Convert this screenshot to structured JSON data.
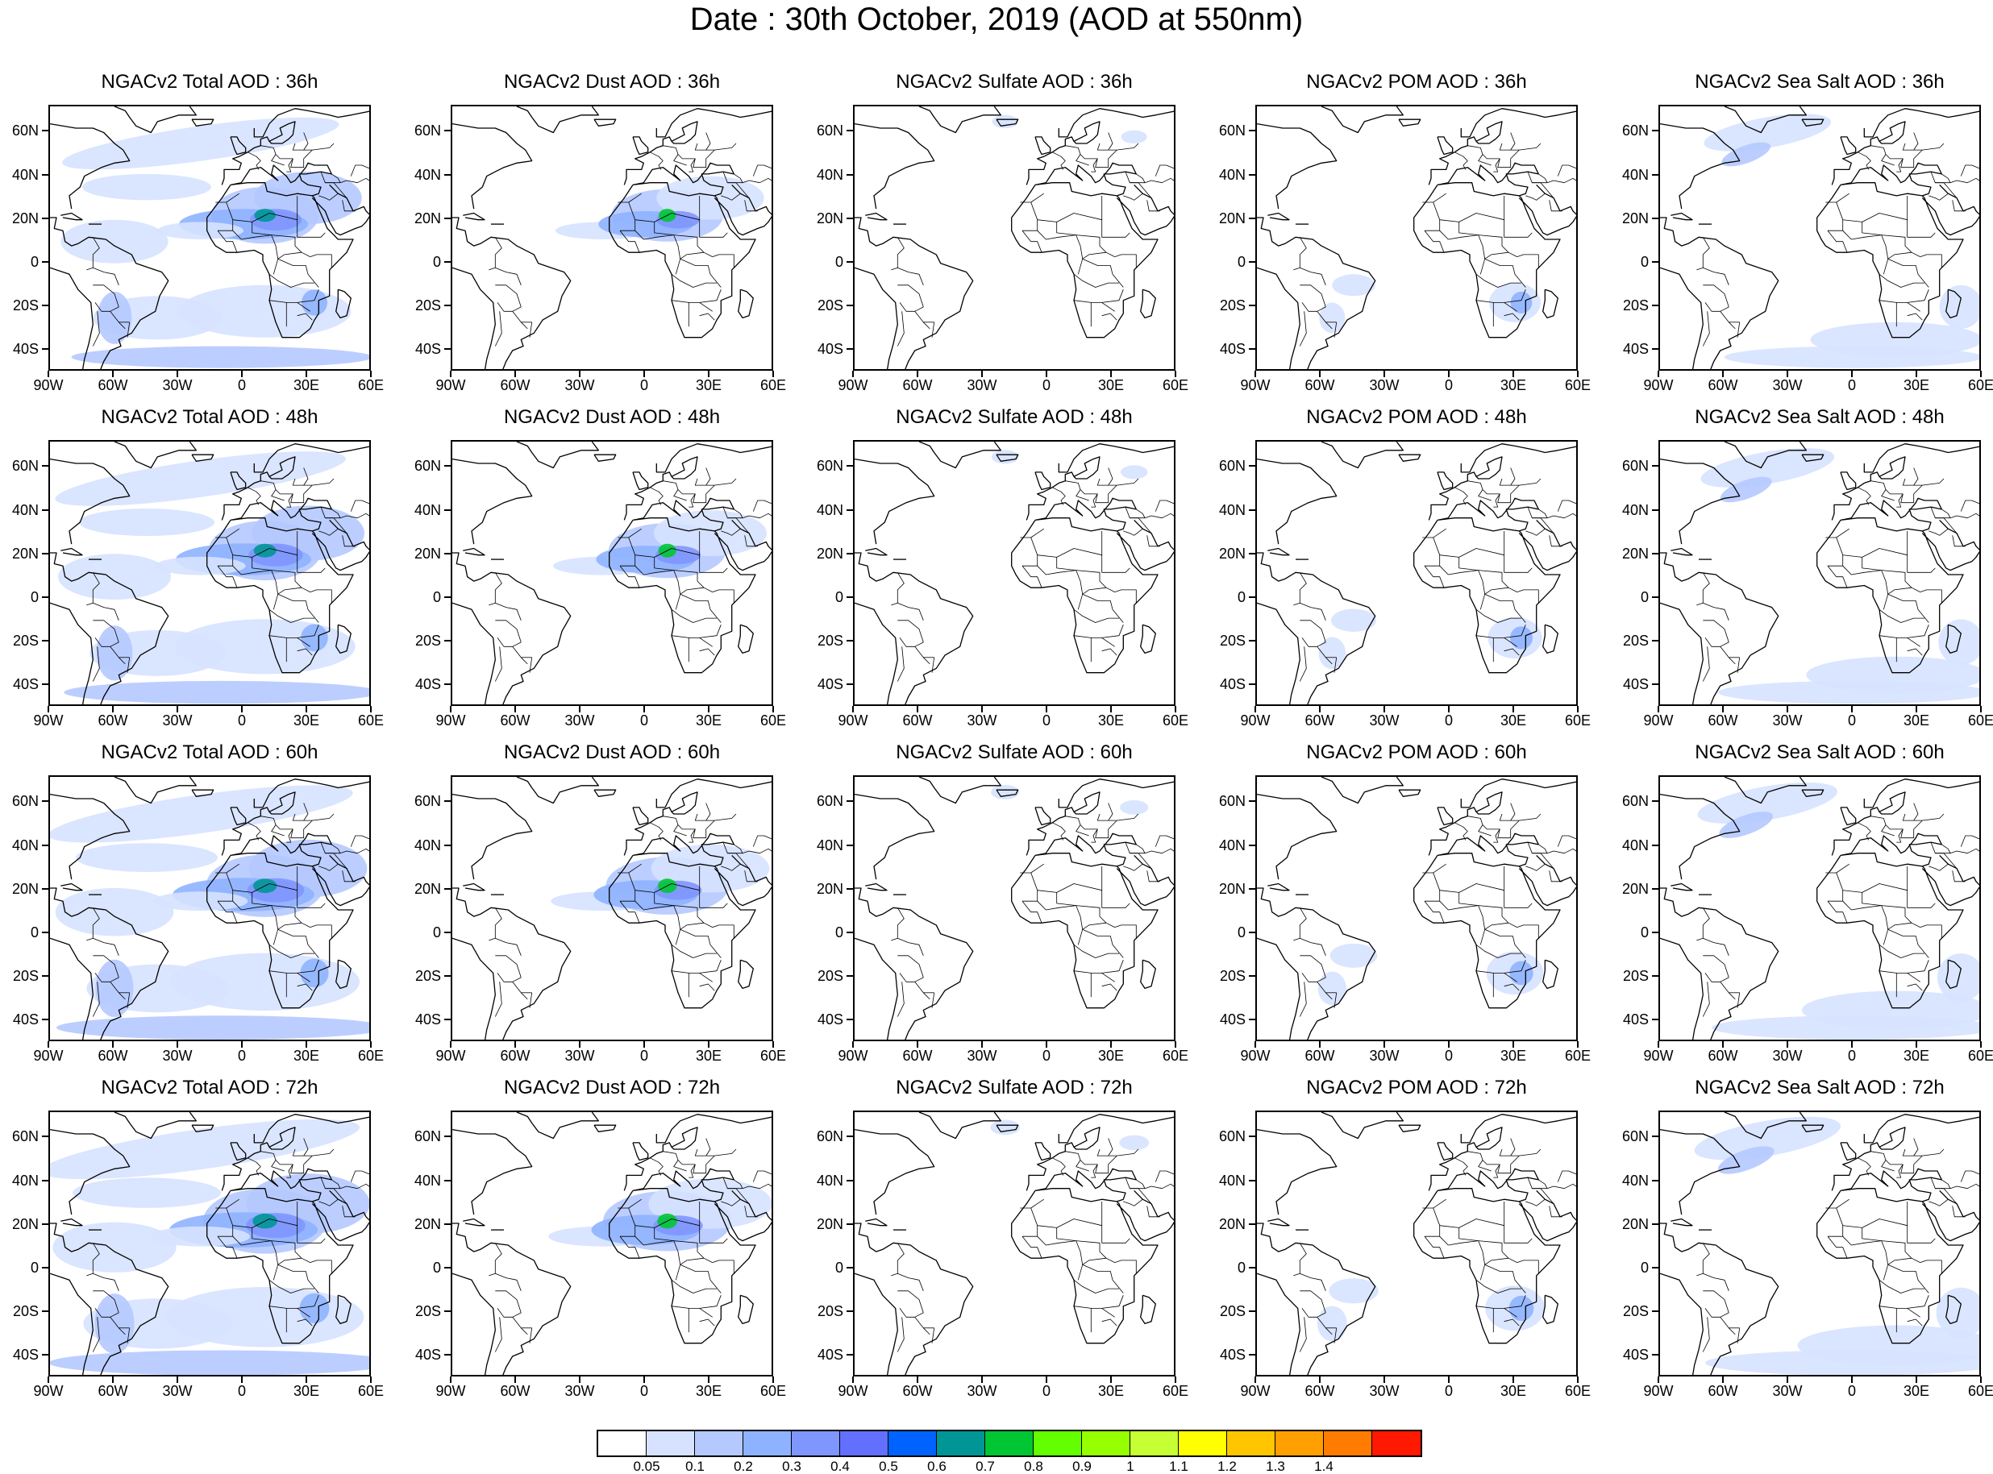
{
  "title": "Date : 30th October, 2019 (AOD at 550nm)",
  "columns": [
    "Total",
    "Dust",
    "Sulfate",
    "POM",
    "Sea Salt"
  ],
  "rows": [
    "36h",
    "48h",
    "60h",
    "72h"
  ],
  "panels": [
    {
      "title": "NGACv2 Total AOD : 36h",
      "species": "Total",
      "hour": "36h"
    },
    {
      "title": "NGACv2 Dust AOD : 36h",
      "species": "Dust",
      "hour": "36h"
    },
    {
      "title": "NGACv2 Sulfate AOD : 36h",
      "species": "Sulfate",
      "hour": "36h"
    },
    {
      "title": "NGACv2 POM AOD : 36h",
      "species": "POM",
      "hour": "36h"
    },
    {
      "title": "NGACv2 Sea Salt AOD : 36h",
      "species": "Sea Salt",
      "hour": "36h"
    },
    {
      "title": "NGACv2 Total AOD : 48h",
      "species": "Total",
      "hour": "48h"
    },
    {
      "title": "NGACv2 Dust AOD : 48h",
      "species": "Dust",
      "hour": "48h"
    },
    {
      "title": "NGACv2 Sulfate AOD : 48h",
      "species": "Sulfate",
      "hour": "48h"
    },
    {
      "title": "NGACv2 POM AOD : 48h",
      "species": "POM",
      "hour": "48h"
    },
    {
      "title": "NGACv2 Sea Salt AOD : 48h",
      "species": "Sea Salt",
      "hour": "48h"
    },
    {
      "title": "NGACv2 Total AOD : 60h",
      "species": "Total",
      "hour": "60h"
    },
    {
      "title": "NGACv2 Dust AOD : 60h",
      "species": "Dust",
      "hour": "60h"
    },
    {
      "title": "NGACv2 Sulfate AOD : 60h",
      "species": "Sulfate",
      "hour": "60h"
    },
    {
      "title": "NGACv2 POM AOD : 60h",
      "species": "POM",
      "hour": "60h"
    },
    {
      "title": "NGACv2 Sea Salt AOD : 60h",
      "species": "Sea Salt",
      "hour": "60h"
    },
    {
      "title": "NGACv2 Total AOD : 72h",
      "species": "Total",
      "hour": "72h"
    },
    {
      "title": "NGACv2 Dust AOD : 72h",
      "species": "Dust",
      "hour": "72h"
    },
    {
      "title": "NGACv2 Sulfate AOD : 72h",
      "species": "Sulfate",
      "hour": "72h"
    },
    {
      "title": "NGACv2 POM AOD : 72h",
      "species": "POM",
      "hour": "72h"
    },
    {
      "title": "NGACv2 Sea Salt  AOD : 72h",
      "species": "Sea Salt",
      "hour": "72h"
    }
  ],
  "map_extent": {
    "lon_min": -90,
    "lon_max": 60,
    "lat_min": -50,
    "lat_max": 72
  },
  "lat_ticks": [
    {
      "value": 60,
      "label": "60N"
    },
    {
      "value": 40,
      "label": "40N"
    },
    {
      "value": 20,
      "label": "20N"
    },
    {
      "value": 0,
      "label": "0"
    },
    {
      "value": -20,
      "label": "20S"
    },
    {
      "value": -40,
      "label": "40S"
    }
  ],
  "lon_ticks": [
    {
      "value": -90,
      "label": "90W"
    },
    {
      "value": -60,
      "label": "60W"
    },
    {
      "value": -30,
      "label": "30W"
    },
    {
      "value": 0,
      "label": "0"
    },
    {
      "value": 30,
      "label": "30E"
    },
    {
      "value": 60,
      "label": "60E"
    }
  ],
  "colorbar": {
    "labels": [
      "0.05",
      "0.1",
      "0.2",
      "0.3",
      "0.4",
      "0.5",
      "0.6",
      "0.7",
      "0.8",
      "0.9",
      "1",
      "1.1",
      "1.2",
      "1.3",
      "1.4"
    ],
    "colors": [
      "#ffffff",
      "#d6e2ff",
      "#b5c9ff",
      "#8eb2ff",
      "#7f96ff",
      "#6370ff",
      "#0063ff",
      "#009696",
      "#00c633",
      "#63ff00",
      "#96ff00",
      "#c6ff33",
      "#ffff00",
      "#ffc600",
      "#ffa000",
      "#ff7c00",
      "#ff1900"
    ]
  }
}
